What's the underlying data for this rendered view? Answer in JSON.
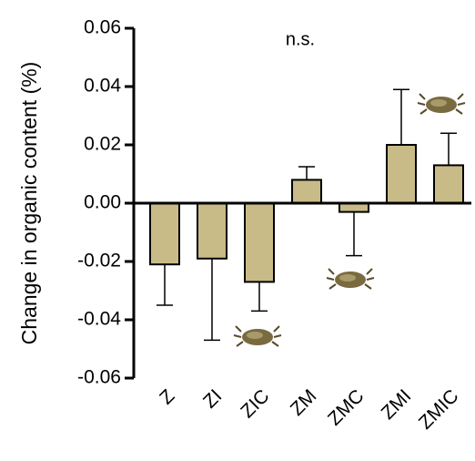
{
  "chart_data": {
    "type": "bar",
    "y_label": "Change in organic content (%)",
    "annotation": "n.s.",
    "categories": [
      "Z",
      "ZI",
      "ZIC",
      "ZM",
      "ZMC",
      "ZMI",
      "ZMIC"
    ],
    "values": [
      -0.021,
      -0.019,
      -0.027,
      0.008,
      -0.003,
      0.02,
      0.013
    ],
    "errors": [
      0.014,
      0.028,
      0.01,
      0.0045,
      0.015,
      0.019,
      0.011
    ],
    "color": "#c9bb88",
    "ylim": [
      -0.06,
      0.06
    ],
    "yticks": [
      -0.06,
      -0.04,
      -0.02,
      {
        "value": 0,
        "label": "0.00"
      },
      0.02,
      0.04,
      0.06
    ]
  }
}
